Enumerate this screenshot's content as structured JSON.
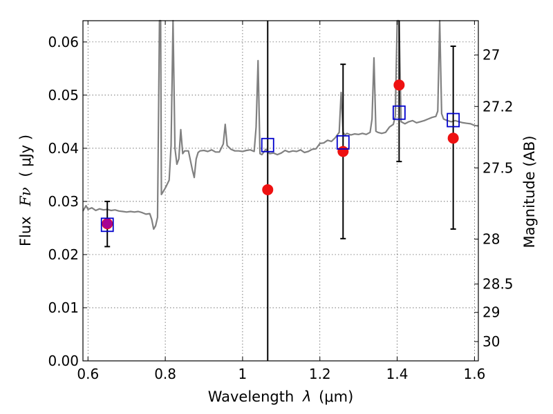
{
  "chart_data": {
    "type": "scatter",
    "xlabel_main": "Wavelength",
    "xlabel_symbol": "λ",
    "xlabel_unit": "(μm)",
    "ylabel_main": "Flux",
    "ylabel_symbol": "Fν",
    "ylabel_unit": "( μJy )",
    "y2label": "Magnitude (AB)",
    "xlim": [
      0.587,
      1.61
    ],
    "ylim": [
      0.0,
      0.064
    ],
    "xticks": [
      0.6,
      0.8,
      1.0,
      1.2,
      1.4,
      1.6
    ],
    "xtick_labels": [
      "0.6",
      "0.8",
      "1",
      "1.2",
      "1.4",
      "1.6"
    ],
    "yticks": [
      0.0,
      0.01,
      0.02,
      0.03,
      0.04,
      0.05,
      0.06
    ],
    "ytick_labels": [
      "0.00",
      "0.01",
      "0.02",
      "0.03",
      "0.04",
      "0.05",
      "0.06"
    ],
    "mag_ticks": [
      27,
      27.2,
      27.5,
      28,
      28.5,
      29,
      30
    ],
    "mag_tick_labels": [
      "27",
      "27.2",
      "27.5",
      "28",
      "28.5",
      "29",
      "30"
    ],
    "grid": true,
    "colors": {
      "spectrum": "#808080",
      "observed": "#ee1111",
      "model": "#0000cc",
      "errorbar": "#000000",
      "overlap": "#9900aa"
    },
    "series": [
      {
        "kind": "observed_photometry",
        "marker": "circle",
        "x": [
          0.65,
          1.065,
          1.26,
          1.405,
          1.545
        ],
        "y": [
          0.0258,
          0.0322,
          0.0394,
          0.0519,
          0.0419
        ],
        "yerr_low": [
          0.0215,
          0.0,
          0.023,
          0.0375,
          0.0248
        ],
        "yerr_high": [
          0.03,
          0.064,
          0.0558,
          0.064,
          0.0592
        ]
      },
      {
        "kind": "model_photometry",
        "marker": "open-square",
        "x": [
          0.65,
          1.065,
          1.26,
          1.405,
          1.545
        ],
        "y": [
          0.0256,
          0.0406,
          0.0411,
          0.0467,
          0.0453
        ]
      },
      {
        "kind": "model_spectrum",
        "x": [
          0.587,
          0.595,
          0.6,
          0.61,
          0.62,
          0.63,
          0.64,
          0.65,
          0.66,
          0.67,
          0.68,
          0.69,
          0.7,
          0.71,
          0.72,
          0.73,
          0.74,
          0.75,
          0.76,
          0.765,
          0.77,
          0.775,
          0.78,
          0.785,
          0.788,
          0.79,
          0.8,
          0.81,
          0.815,
          0.82,
          0.825,
          0.83,
          0.835,
          0.84,
          0.845,
          0.85,
          0.86,
          0.87,
          0.875,
          0.88,
          0.885,
          0.89,
          0.9,
          0.91,
          0.92,
          0.93,
          0.94,
          0.95,
          0.955,
          0.96,
          0.97,
          0.98,
          0.99,
          1.0,
          1.01,
          1.02,
          1.03,
          1.035,
          1.04,
          1.045,
          1.05,
          1.06,
          1.07,
          1.08,
          1.09,
          1.1,
          1.11,
          1.12,
          1.13,
          1.14,
          1.15,
          1.16,
          1.17,
          1.18,
          1.19,
          1.2,
          1.21,
          1.22,
          1.23,
          1.24,
          1.25,
          1.255,
          1.26,
          1.265,
          1.27,
          1.28,
          1.29,
          1.3,
          1.31,
          1.32,
          1.33,
          1.335,
          1.34,
          1.345,
          1.35,
          1.36,
          1.37,
          1.38,
          1.39,
          1.395,
          1.4,
          1.405,
          1.41,
          1.42,
          1.43,
          1.44,
          1.45,
          1.46,
          1.47,
          1.48,
          1.49,
          1.5,
          1.505,
          1.51,
          1.515,
          1.52,
          1.53,
          1.54,
          1.55,
          1.56,
          1.57,
          1.58,
          1.59,
          1.6,
          1.61
        ],
        "y": [
          0.0282,
          0.0292,
          0.0285,
          0.0288,
          0.0283,
          0.0286,
          0.0284,
          0.0285,
          0.0283,
          0.0284,
          0.0282,
          0.0281,
          0.028,
          0.0281,
          0.028,
          0.0281,
          0.0279,
          0.0276,
          0.0277,
          0.0266,
          0.0248,
          0.0254,
          0.027,
          0.064,
          0.064,
          0.0313,
          0.0325,
          0.034,
          0.0405,
          0.064,
          0.04,
          0.037,
          0.038,
          0.0435,
          0.039,
          0.0395,
          0.0395,
          0.036,
          0.0345,
          0.038,
          0.0392,
          0.0395,
          0.0396,
          0.0394,
          0.0397,
          0.0393,
          0.0393,
          0.0408,
          0.0445,
          0.0405,
          0.0398,
          0.0395,
          0.0395,
          0.0394,
          0.0396,
          0.0397,
          0.0394,
          0.044,
          0.0565,
          0.039,
          0.0388,
          0.0398,
          0.039,
          0.0391,
          0.0388,
          0.0391,
          0.0396,
          0.0393,
          0.0395,
          0.0394,
          0.0397,
          0.0392,
          0.0394,
          0.0398,
          0.0399,
          0.0409,
          0.041,
          0.0415,
          0.0413,
          0.042,
          0.043,
          0.0505,
          0.043,
          0.0425,
          0.0428,
          0.0425,
          0.0427,
          0.0426,
          0.0428,
          0.0426,
          0.043,
          0.0455,
          0.057,
          0.0432,
          0.043,
          0.0428,
          0.043,
          0.044,
          0.0445,
          0.046,
          0.064,
          0.064,
          0.045,
          0.0446,
          0.045,
          0.0452,
          0.0448,
          0.045,
          0.0452,
          0.0455,
          0.0458,
          0.046,
          0.047,
          0.064,
          0.0465,
          0.0455,
          0.0452,
          0.045,
          0.0452,
          0.045,
          0.0448,
          0.0447,
          0.0446,
          0.0443,
          0.0442
        ]
      }
    ]
  }
}
